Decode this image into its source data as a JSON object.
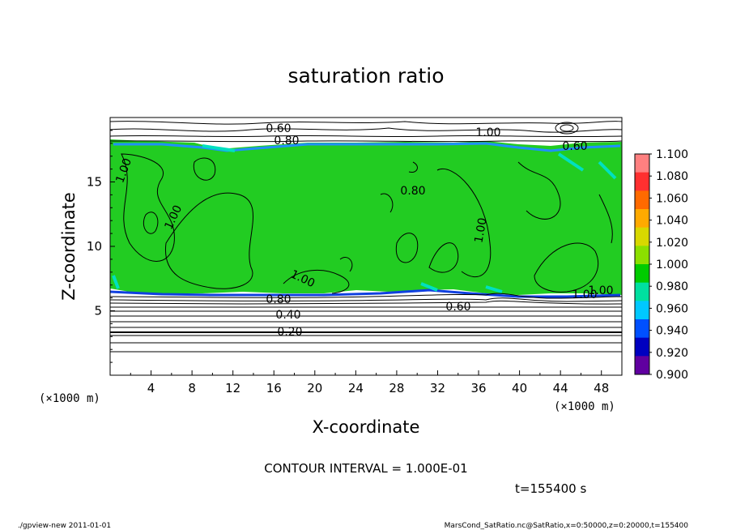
{
  "chart_data": {
    "type": "heatmap",
    "title": "saturation ratio",
    "xlabel": "X-coordinate",
    "ylabel": "Z-coordinate",
    "x_unit": "(×1000 m)",
    "y_unit": "(×1000 m)",
    "xlim": [
      0,
      50
    ],
    "ylim": [
      0,
      20
    ],
    "x_ticks": [
      "4",
      "8",
      "12",
      "16",
      "20",
      "24",
      "28",
      "32",
      "36",
      "40",
      "44",
      "48"
    ],
    "y_ticks": [
      "5",
      "10",
      "15"
    ],
    "colorbar": {
      "labels": [
        "1.100",
        "1.080",
        "1.060",
        "1.040",
        "1.020",
        "1.000",
        "0.980",
        "0.960",
        "0.940",
        "0.920",
        "0.900"
      ],
      "colors": [
        "#ff8080",
        "#ff3030",
        "#ff6a00",
        "#ffaa00",
        "#d8d800",
        "#8ce000",
        "#00cc00",
        "#00e0a0",
        "#00c8ff",
        "#0050ff",
        "#0000c0",
        "#6000a0"
      ]
    },
    "contour_labels": [
      "0.60",
      "0.80",
      "1.00",
      "0.60",
      "1.00",
      "1.00",
      "1.00",
      "1.00",
      "1.00",
      "0.80",
      "0.40",
      "0.20",
      "0.60",
      "1.00",
      "0.80"
    ],
    "contour_interval_text": "CONTOUR INTERVAL = 1.000E-01",
    "time_text": "t=155400 s",
    "colors": {
      "saturated": "#22cc22",
      "background": "#ffffff",
      "lines": "#000000"
    }
  },
  "footer": {
    "left": "./gpview-new  2011-01-01",
    "right": "MarsCond_SatRatio.nc@SatRatio,x=0:50000,z=0:20000,t=155400"
  }
}
